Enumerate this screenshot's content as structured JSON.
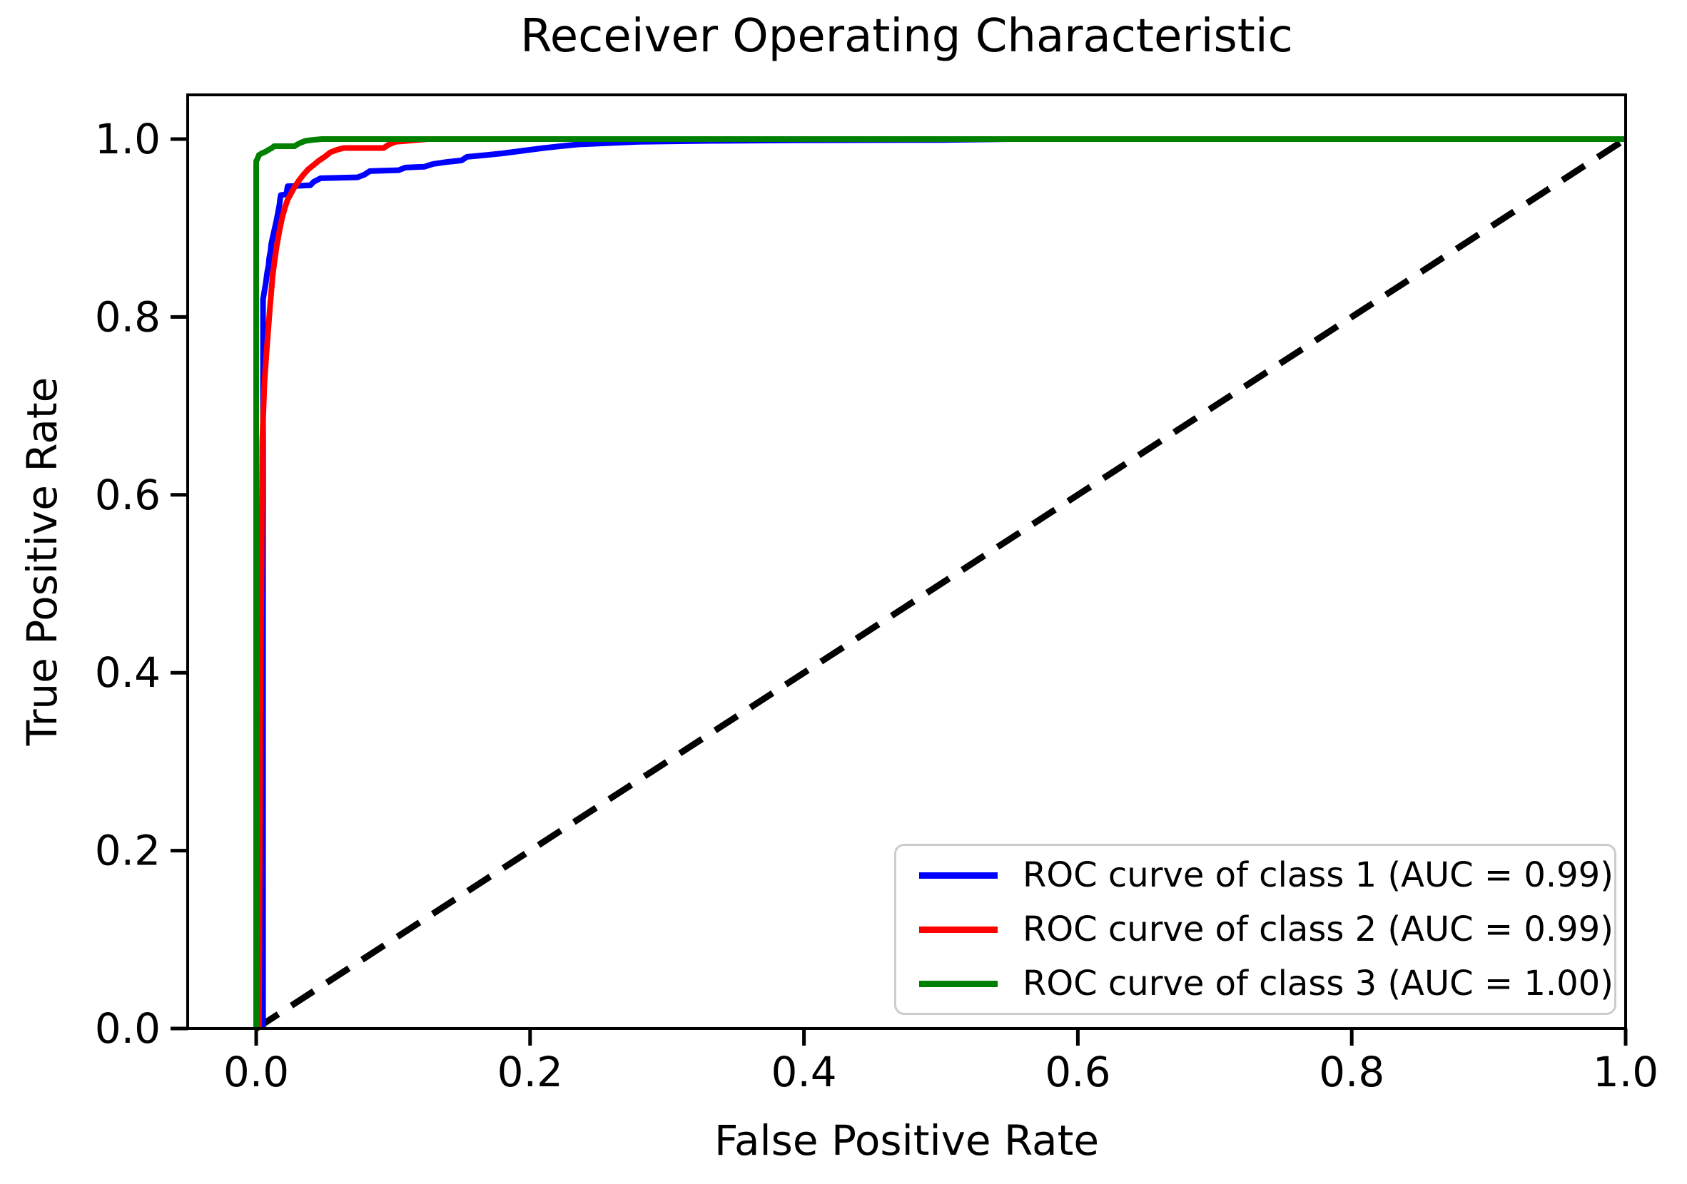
{
  "chart_data": {
    "type": "line",
    "title": "Receiver Operating Characteristic",
    "xlabel": "False Positive Rate",
    "ylabel": "True Positive Rate",
    "xlim": [
      -0.05,
      1.0
    ],
    "ylim": [
      0.0,
      1.05
    ],
    "grid": false,
    "legend_position": "lower right",
    "x_tick_labels": [
      "0.0",
      "0.2",
      "0.4",
      "0.6",
      "0.8",
      "1.0"
    ],
    "x_tick_values": [
      0.0,
      0.2,
      0.4,
      0.6,
      0.8,
      1.0
    ],
    "y_tick_labels": [
      "0.0",
      "0.2",
      "0.4",
      "0.6",
      "0.8",
      "1.0"
    ],
    "y_tick_values": [
      0.0,
      0.2,
      0.4,
      0.6,
      0.8,
      1.0
    ],
    "reference_line": {
      "name": "chance-diagonal",
      "color": "#000000",
      "style": "dashed",
      "points": [
        [
          0.0,
          0.0
        ],
        [
          1.0,
          1.0
        ]
      ]
    },
    "series": [
      {
        "name": "ROC curve of class 1 (AUC = 0.99)",
        "class": 1,
        "auc": 0.99,
        "color": "#0000ff",
        "points": [
          [
            0.005,
            0.0
          ],
          [
            0.005,
            0.82
          ],
          [
            0.007,
            0.838
          ],
          [
            0.008,
            0.85
          ],
          [
            0.009,
            0.858
          ],
          [
            0.0095,
            0.866
          ],
          [
            0.0105,
            0.874
          ],
          [
            0.011,
            0.882
          ],
          [
            0.012,
            0.889
          ],
          [
            0.013,
            0.896
          ],
          [
            0.014,
            0.903
          ],
          [
            0.015,
            0.91
          ],
          [
            0.016,
            0.918
          ],
          [
            0.017,
            0.926
          ],
          [
            0.0175,
            0.933
          ],
          [
            0.018,
            0.937
          ],
          [
            0.022,
            0.938
          ],
          [
            0.023,
            0.947
          ],
          [
            0.0395,
            0.948
          ],
          [
            0.042,
            0.952
          ],
          [
            0.047,
            0.956
          ],
          [
            0.074,
            0.957
          ],
          [
            0.079,
            0.96
          ],
          [
            0.083,
            0.964
          ],
          [
            0.104,
            0.965
          ],
          [
            0.109,
            0.968
          ],
          [
            0.123,
            0.969
          ],
          [
            0.129,
            0.972
          ],
          [
            0.138,
            0.974
          ],
          [
            0.15,
            0.976
          ],
          [
            0.154,
            0.98
          ],
          [
            0.168,
            0.982
          ],
          [
            0.18,
            0.984
          ],
          [
            0.19,
            0.986
          ],
          [
            0.2,
            0.988
          ],
          [
            0.21,
            0.99
          ],
          [
            0.222,
            0.992
          ],
          [
            0.235,
            0.994
          ],
          [
            0.25,
            0.995
          ],
          [
            0.28,
            0.997
          ],
          [
            0.33,
            0.998
          ],
          [
            0.4,
            0.9987
          ],
          [
            0.5,
            0.999
          ],
          [
            0.55,
            1.0
          ],
          [
            1.0,
            1.0
          ]
        ]
      },
      {
        "name": "ROC curve of class 2 (AUC = 0.99)",
        "class": 2,
        "auc": 0.99,
        "color": "#ff0000",
        "points": [
          [
            0.002,
            0.0
          ],
          [
            0.003,
            0.35
          ],
          [
            0.004,
            0.55
          ],
          [
            0.0045,
            0.66
          ],
          [
            0.005,
            0.685
          ],
          [
            0.0055,
            0.705
          ],
          [
            0.006,
            0.725
          ],
          [
            0.007,
            0.748
          ],
          [
            0.008,
            0.77
          ],
          [
            0.009,
            0.79
          ],
          [
            0.01,
            0.81
          ],
          [
            0.011,
            0.828
          ],
          [
            0.012,
            0.846
          ],
          [
            0.0135,
            0.864
          ],
          [
            0.015,
            0.88
          ],
          [
            0.017,
            0.897
          ],
          [
            0.019,
            0.912
          ],
          [
            0.021,
            0.923
          ],
          [
            0.023,
            0.932
          ],
          [
            0.0255,
            0.939
          ],
          [
            0.028,
            0.946
          ],
          [
            0.031,
            0.953
          ],
          [
            0.0345,
            0.96
          ],
          [
            0.038,
            0.966
          ],
          [
            0.042,
            0.971
          ],
          [
            0.046,
            0.976
          ],
          [
            0.05,
            0.98
          ],
          [
            0.054,
            0.985
          ],
          [
            0.059,
            0.988
          ],
          [
            0.064,
            0.99
          ],
          [
            0.093,
            0.99
          ],
          [
            0.097,
            0.994
          ],
          [
            0.102,
            0.997
          ],
          [
            0.11,
            0.998
          ],
          [
            0.125,
            1.0
          ],
          [
            1.0,
            1.0
          ]
        ]
      },
      {
        "name": "ROC curve of class 3 (AUC = 1.00)",
        "class": 3,
        "auc": 1.0,
        "color": "#008000",
        "points": [
          [
            0.0,
            0.0
          ],
          [
            0.0,
            0.975
          ],
          [
            0.0015,
            0.98
          ],
          [
            0.002,
            0.982
          ],
          [
            0.004,
            0.984
          ],
          [
            0.007,
            0.986
          ],
          [
            0.009,
            0.988
          ],
          [
            0.0115,
            0.99
          ],
          [
            0.013,
            0.992
          ],
          [
            0.028,
            0.992
          ],
          [
            0.03,
            0.994
          ],
          [
            0.0325,
            0.996
          ],
          [
            0.036,
            0.998
          ],
          [
            0.041,
            0.999
          ],
          [
            0.048,
            1.0
          ],
          [
            1.0,
            1.0
          ]
        ]
      }
    ]
  }
}
